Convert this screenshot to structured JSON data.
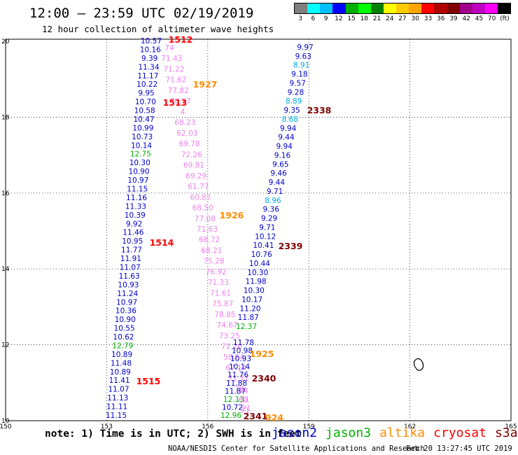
{
  "header": {
    "title": "12:00 — 23:59 UTC 02/19/2019",
    "subtitle": "12 hour collection of altimeter wave heights"
  },
  "color_scale": {
    "unit": "(ft)",
    "colors": [
      "#7f7f7f",
      "#00ffff",
      "#00bfff",
      "#0000ff",
      "#00b000",
      "#00ff00",
      "#008000",
      "#ffff00",
      "#ffcc00",
      "#ffa500",
      "#ff0000",
      "#b00000",
      "#800000",
      "#a0008c",
      "#c000c0",
      "#ff00ff",
      "#000000"
    ],
    "labels": [
      "3",
      "6",
      "9",
      "12",
      "15",
      "18",
      "21",
      "24",
      "27",
      "30",
      "33",
      "36",
      "39",
      "42",
      "45",
      "70",
      "(ft)"
    ]
  },
  "map": {
    "lon_ticks": [
      "150",
      "153",
      "156",
      "159",
      "162",
      "165"
    ],
    "lat_ticks": [
      "20",
      "18",
      "16",
      "14",
      "12",
      "10"
    ],
    "colors": {
      "jason2": "#0000cc",
      "jason3": "#00b000",
      "altika": "#ff8c00",
      "cryosat": "#ff0000",
      "s3a": "#800000",
      "pink": "#ee82ee",
      "cyan": "#00aadd"
    },
    "track_1": [
      {
        "v": "10.57",
        "c": "jason2"
      },
      {
        "v": "10.16",
        "c": "jason2"
      },
      {
        "v": "9.39",
        "c": "jason2"
      },
      {
        "v": "11.34",
        "c": "jason2"
      },
      {
        "v": "11.17",
        "c": "jason2"
      },
      {
        "v": "10.22",
        "c": "jason2"
      },
      {
        "v": "9.95",
        "c": "jason2"
      },
      {
        "v": "10.70",
        "c": "jason2"
      },
      {
        "v": "10.58",
        "c": "jason2"
      },
      {
        "v": "10.47",
        "c": "jason2"
      },
      {
        "v": "10.99",
        "c": "jason2"
      },
      {
        "v": "10.73",
        "c": "jason2"
      },
      {
        "v": "10.14",
        "c": "jason2"
      },
      {
        "v": "12.75",
        "c": "jason3"
      },
      {
        "v": "10.30",
        "c": "jason2"
      },
      {
        "v": "10.90",
        "c": "jason2"
      },
      {
        "v": "10.97",
        "c": "jason2"
      },
      {
        "v": "11.15",
        "c": "jason2"
      },
      {
        "v": "11.16",
        "c": "jason2"
      },
      {
        "v": "11.33",
        "c": "jason2"
      },
      {
        "v": "10.39",
        "c": "jason2"
      },
      {
        "v": "9.92",
        "c": "jason2"
      },
      {
        "v": "11.46",
        "c": "jason2"
      },
      {
        "v": "10.95",
        "c": "jason2"
      },
      {
        "v": "11.77",
        "c": "jason2"
      },
      {
        "v": "11.91",
        "c": "jason2"
      },
      {
        "v": "11.07",
        "c": "jason2"
      },
      {
        "v": "11.63",
        "c": "jason2"
      },
      {
        "v": "10.93",
        "c": "jason2"
      },
      {
        "v": "11.24",
        "c": "jason2"
      },
      {
        "v": "10.97",
        "c": "jason2"
      },
      {
        "v": "10.36",
        "c": "jason2"
      },
      {
        "v": "10.90",
        "c": "jason2"
      },
      {
        "v": "10.55",
        "c": "jason2"
      },
      {
        "v": "10.62",
        "c": "jason2"
      },
      {
        "v": "12.79",
        "c": "jason3"
      },
      {
        "v": "10.89",
        "c": "jason2"
      },
      {
        "v": "11.48",
        "c": "jason2"
      },
      {
        "v": "10.89",
        "c": "jason2"
      },
      {
        "v": "11.41",
        "c": "jason2"
      },
      {
        "v": "11.07",
        "c": "jason2"
      },
      {
        "v": "11.13",
        "c": "jason2"
      },
      {
        "v": "11.11",
        "c": "jason2"
      },
      {
        "v": "11.15",
        "c": "jason2"
      }
    ],
    "track_2": [
      {
        "v": "74",
        "c": "pink"
      },
      {
        "v": "71.43",
        "c": "pink"
      },
      {
        "v": "71.22",
        "c": "pink"
      },
      {
        "v": "71.62",
        "c": "pink"
      },
      {
        "v": "77.82",
        "c": "pink"
      },
      {
        "v": "70.17",
        "c": "pink"
      },
      {
        "v": "4",
        "c": "pink"
      },
      {
        "v": "68.23",
        "c": "pink"
      },
      {
        "v": "62.03",
        "c": "pink"
      },
      {
        "v": "69.78",
        "c": "pink"
      },
      {
        "v": "72.26",
        "c": "pink"
      },
      {
        "v": "69.81",
        "c": "pink"
      },
      {
        "v": "69.29",
        "c": "pink"
      },
      {
        "v": "61.77",
        "c": "pink"
      },
      {
        "v": "60.82",
        "c": "pink"
      },
      {
        "v": "68.50",
        "c": "pink"
      },
      {
        "v": "77.08",
        "c": "pink"
      },
      {
        "v": "71.63",
        "c": "pink"
      },
      {
        "v": "68.72",
        "c": "pink"
      },
      {
        "v": "68.21",
        "c": "pink"
      },
      {
        "v": "75.28",
        "c": "pink"
      },
      {
        "v": "76.92",
        "c": "pink"
      },
      {
        "v": "71.33",
        "c": "pink"
      },
      {
        "v": "71.61",
        "c": "pink"
      },
      {
        "v": "75.87",
        "c": "pink"
      },
      {
        "v": "78.85",
        "c": "pink"
      },
      {
        "v": "74.67",
        "c": "pink"
      },
      {
        "v": "73.25",
        "c": "pink"
      },
      {
        "v": "72.20",
        "c": "pink"
      },
      {
        "v": "58.64",
        "c": "pink"
      },
      {
        "v": "67.14",
        "c": "pink"
      },
      {
        "v": "71.31",
        "c": "pink"
      },
      {
        "v": "78.",
        "c": "pink"
      },
      {
        "v": "69",
        "c": "pink"
      },
      {
        "v": "71",
        "c": "pink"
      }
    ],
    "track_3": [
      {
        "v": "11.78",
        "c": "jason2"
      },
      {
        "v": "10.98",
        "c": "jason2"
      },
      {
        "v": "10.93",
        "c": "jason2"
      },
      {
        "v": "10.14",
        "c": "jason2"
      },
      {
        "v": "11.76",
        "c": "jason2"
      },
      {
        "v": "11.88",
        "c": "jason2"
      },
      {
        "v": "11.87",
        "c": "jason2"
      },
      {
        "v": "12.13",
        "c": "jason3"
      },
      {
        "v": "10.72",
        "c": "jason2"
      },
      {
        "v": "12.96",
        "c": "jason3"
      }
    ],
    "track_3_pink": [
      {
        "v": "74",
        "c": "pink"
      },
      {
        "v": "51",
        "c": "pink"
      },
      {
        "v": "21",
        "c": "pink"
      }
    ],
    "track_4": [
      {
        "v": "9.97",
        "c": "jason2"
      },
      {
        "v": "9.63",
        "c": "jason2"
      },
      {
        "v": "8.91",
        "c": "cyan"
      },
      {
        "v": "9.18",
        "c": "jason2"
      },
      {
        "v": "9.57",
        "c": "jason2"
      },
      {
        "v": "9.28",
        "c": "jason2"
      },
      {
        "v": "8.89",
        "c": "cyan"
      },
      {
        "v": "9.35",
        "c": "jason2"
      },
      {
        "v": "8.68",
        "c": "cyan"
      },
      {
        "v": "9.94",
        "c": "jason2"
      },
      {
        "v": "9.44",
        "c": "jason2"
      },
      {
        "v": "9.94",
        "c": "jason2"
      },
      {
        "v": "9.16",
        "c": "jason2"
      },
      {
        "v": "9.65",
        "c": "jason2"
      },
      {
        "v": "9.46",
        "c": "jason2"
      },
      {
        "v": "9.44",
        "c": "jason2"
      },
      {
        "v": "9.71",
        "c": "jason2"
      },
      {
        "v": "8.96",
        "c": "cyan"
      },
      {
        "v": "9.36",
        "c": "jason2"
      },
      {
        "v": "9.29",
        "c": "jason2"
      },
      {
        "v": "9.71",
        "c": "jason2"
      },
      {
        "v": "10.12",
        "c": "jason2"
      },
      {
        "v": "10.41",
        "c": "jason2"
      },
      {
        "v": "10.76",
        "c": "jason2"
      },
      {
        "v": "10.44",
        "c": "jason2"
      },
      {
        "v": "10.30",
        "c": "jason2"
      },
      {
        "v": "11.98",
        "c": "jason2"
      },
      {
        "v": "10.30",
        "c": "jason2"
      },
      {
        "v": "10.17",
        "c": "jason2"
      },
      {
        "v": "11.20",
        "c": "jason2"
      },
      {
        "v": "11.87",
        "c": "jason2"
      },
      {
        "v": "12.37",
        "c": "jason3"
      }
    ],
    "time_labels": [
      {
        "t": "1512",
        "c": "cryosat"
      },
      {
        "t": "1927",
        "c": "altika"
      },
      {
        "t": "1513",
        "c": "cryosat"
      },
      {
        "t": "2338",
        "c": "s3a"
      },
      {
        "t": "1926",
        "c": "altika"
      },
      {
        "t": "1514",
        "c": "cryosat"
      },
      {
        "t": "2339",
        "c": "s3a"
      },
      {
        "t": "1925",
        "c": "altika"
      },
      {
        "t": "1515",
        "c": "cryosat"
      },
      {
        "t": "2340",
        "c": "s3a"
      },
      {
        "t": "2341",
        "c": "s3a"
      },
      {
        "t": "924",
        "c": "altika"
      }
    ]
  },
  "footer": {
    "note": "note: 1) Time is in UTC; 2) SWH is in feet",
    "satellites": [
      {
        "name": "jason2",
        "color": "#0000cc"
      },
      {
        "name": "jason3",
        "color": "#00b000"
      },
      {
        "name": "altika",
        "color": "#ff8c00"
      },
      {
        "name": "cryosat",
        "color": "#ff0000"
      },
      {
        "name": "s3a",
        "color": "#800000"
      }
    ],
    "credit": "NOAA/NESDIS Center for Satellite Applications and Research",
    "timestamp": "Feb 20 13:27:45 UTC 2019"
  }
}
